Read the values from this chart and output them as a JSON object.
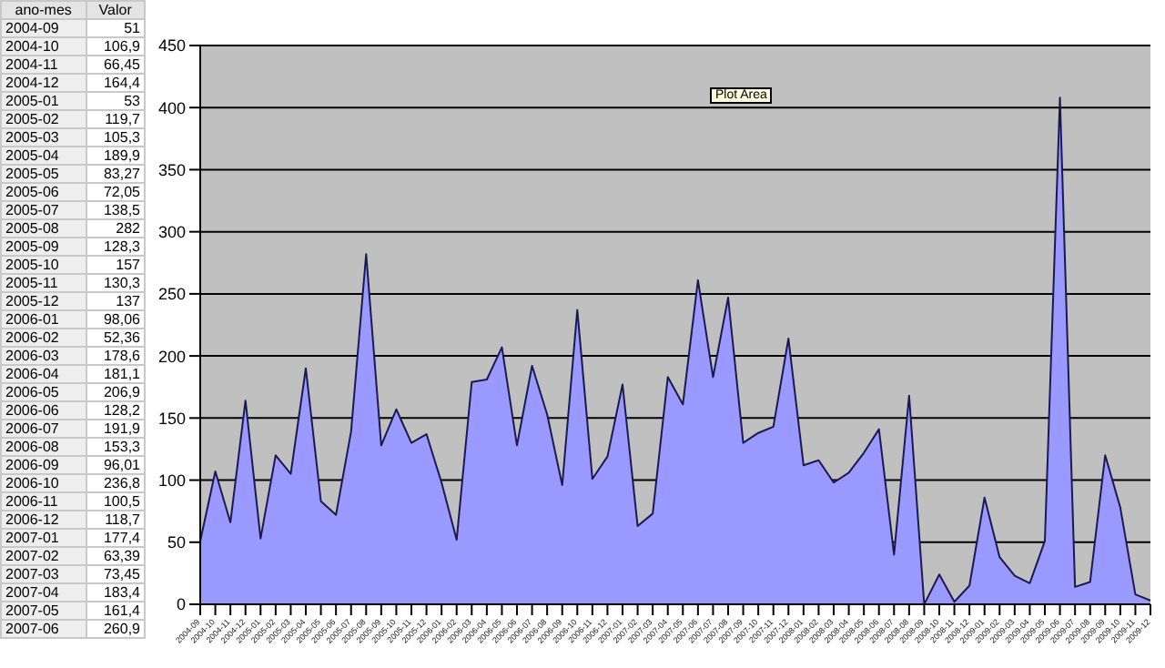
{
  "chart_data": [
    {
      "type": "other",
      "annotations": [
        "ano-mes",
        "Valor"
      ],
      "categories": [
        "2004-09",
        "2004-10",
        "2004-11",
        "2004-12",
        "2005-01",
        "2005-02",
        "2005-03",
        "2005-04",
        "2005-05",
        "2005-06",
        "2005-07",
        "2005-08",
        "2005-09",
        "2005-10",
        "2005-11",
        "2005-12",
        "2006-01",
        "2006-02",
        "2006-03",
        "2006-04",
        "2006-05",
        "2006-06",
        "2006-07",
        "2006-08",
        "2006-09",
        "2006-10",
        "2006-11",
        "2006-12",
        "2007-01",
        "2007-02",
        "2007-03",
        "2007-04",
        "2007-05",
        "2007-06"
      ],
      "values": [
        51,
        106.9,
        66.45,
        164.4,
        53,
        119.7,
        105.3,
        189.9,
        83.27,
        72.05,
        138.5,
        282,
        128.3,
        157,
        130.3,
        137,
        98.06,
        52.36,
        178.6,
        181.1,
        206.9,
        128.2,
        191.9,
        153.3,
        96.01,
        236.8,
        100.5,
        118.7,
        177.4,
        63.39,
        73.45,
        183.4,
        161.4,
        260.9
      ],
      "value_labels": [
        "51",
        "106,9",
        "66,45",
        "164,4",
        "53",
        "119,7",
        "105,3",
        "189,9",
        "83,27",
        "72,05",
        "138,5",
        "282",
        "128,3",
        "157",
        "130,3",
        "137",
        "98,06",
        "52,36",
        "178,6",
        "181,1",
        "206,9",
        "128,2",
        "191,9",
        "153,3",
        "96,01",
        "236,8",
        "100,5",
        "118,7",
        "177,4",
        "63,39",
        "73,45",
        "183,4",
        "161,4",
        "260,9"
      ]
    },
    {
      "type": "area",
      "categories": [
        "2004-09",
        "2004-10",
        "2004-11",
        "2004-12",
        "2005-01",
        "2005-02",
        "2005-03",
        "2005-04",
        "2005-05",
        "2005-06",
        "2005-07",
        "2005-08",
        "2005-09",
        "2005-10",
        "2005-11",
        "2005-12",
        "2006-01",
        "2006-02",
        "2006-03",
        "2006-04",
        "2006-05",
        "2006-06",
        "2006-07",
        "2006-08",
        "2006-09",
        "2006-10",
        "2006-11",
        "2006-12",
        "2007-01",
        "2007-02",
        "2007-03",
        "2007-04",
        "2007-05",
        "2007-06",
        "2007-07",
        "2007-08",
        "2007-09",
        "2007-10",
        "2007-11",
        "2007-12",
        "2008-01",
        "2008-02",
        "2008-03",
        "2008-04",
        "2008-05",
        "2008-06",
        "2008-07",
        "2008-08",
        "2008-09",
        "2008-10",
        "2008-11",
        "2008-12",
        "2009-01",
        "2009-02",
        "2009-03",
        "2009-04",
        "2009-05",
        "2009-06",
        "2009-07",
        "2009-08",
        "2009-09",
        "2009-10",
        "2009-11",
        "2009-12"
      ],
      "values": [
        51,
        107,
        66,
        164,
        53,
        120,
        105,
        190,
        83,
        72,
        139,
        282,
        128,
        157,
        130,
        137,
        98,
        52,
        179,
        181,
        207,
        128,
        192,
        153,
        96,
        237,
        101,
        119,
        177,
        63,
        73,
        183,
        161,
        261,
        183,
        247,
        130,
        138,
        143,
        214,
        112,
        116,
        98,
        106,
        122,
        141,
        40,
        168,
        0,
        24,
        2,
        15,
        86,
        38,
        23,
        17,
        51,
        408,
        14,
        18,
        120,
        78,
        8,
        3
      ],
      "color": "#9999ff",
      "ylim": [
        0,
        450
      ],
      "yticks": [
        0,
        50,
        100,
        150,
        200,
        250,
        300,
        350,
        400,
        450
      ],
      "grid": "y",
      "annotations": [
        "Plot Area"
      ]
    }
  ]
}
